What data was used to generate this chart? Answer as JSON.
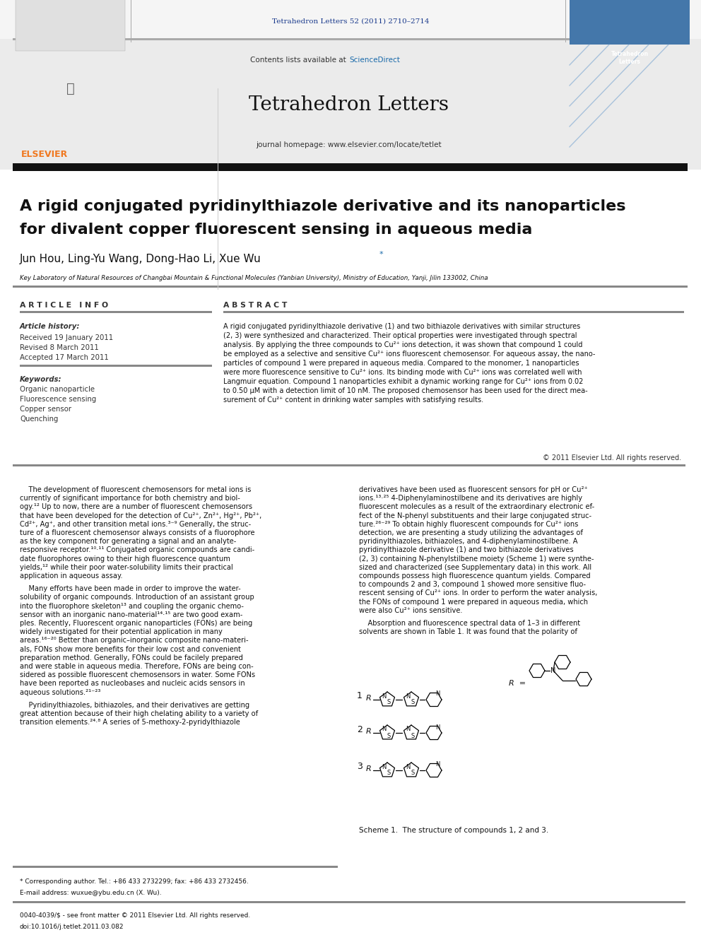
{
  "page_width": 9.92,
  "page_height": 13.23,
  "bg_color": "#ffffff",
  "header_journal_text": "Tetrahedron Letters 52 (2011) 2710–2714",
  "header_journal_color": "#1a3a8c",
  "journal_name": "Tetrahedron Letters",
  "journal_homepage": "journal homepage: www.elsevier.com/locate/tetlet",
  "sciencedirect_color": "#1a6aaa",
  "elsevier_color": "#f07820",
  "article_title_line1": "A rigid conjugated pyridinylthiazole derivative and its nanoparticles",
  "article_title_line2": "for divalent copper fluorescent sensing in aqueous media",
  "affiliation": "Key Laboratory of Natural Resources of Changbai Mountain & Functional Molecules (Yanbian University), Ministry of Education, Yanji, Jilin 133002, China",
  "article_info_header": "A R T I C L E   I N F O",
  "abstract_header": "A B S T R A C T",
  "article_history_label": "Article history:",
  "received_text": "Received 19 January 2011",
  "revised_text": "Revised 8 March 2011",
  "accepted_text": "Accepted 17 March 2011",
  "keywords_label": "Keywords:",
  "keywords": [
    "Organic nanoparticle",
    "Fluorescence sensing",
    "Copper sensor",
    "Quenching"
  ],
  "abstract_text": "A rigid conjugated pyridinylthiazole derivative (1) and two bithiazole derivatives with similar structures (2, 3) were synthesized and characterized. Their optical properties were investigated through spectral analysis. By applying the three compounds to Cu2+ ions detection, it was shown that compound 1 could be employed as a selective and sensitive Cu2+ ions fluorescent chemosensor. For aqueous assay, the nano-particles of compound 1 were prepared in aqueous media. Compared to the monomer, 1 nanoparticles were more fluorescence sensitive to Cu2+ ions. Its binding mode with Cu2+ ions was correlated well with Langmuir equation. Compound 1 nanoparticles exhibit a dynamic working range for Cu2+ ions from 0.02 to 0.50 μM with a detection limit of 10 nM. The proposed chemosensor has been used for the direct mea-surement of Cu2+ content in drinking water samples with satisfying results.",
  "copyright_text": "© 2011 Elsevier Ltd. All rights reserved.",
  "scheme_caption": "Scheme 1.  The structure of compounds 1, 2 and 3.",
  "footnote_star": "* Corresponding author. Tel.: +86 433 2732299; fax: +86 433 2732456.",
  "footnote_email": "E-mail address: wuxue@ybu.edu.cn (X. Wu).",
  "footnote_issn": "0040-4039/$ - see front matter © 2011 Elsevier Ltd. All rights reserved.",
  "footnote_doi": "doi:10.1016/j.tetlet.2011.03.082"
}
